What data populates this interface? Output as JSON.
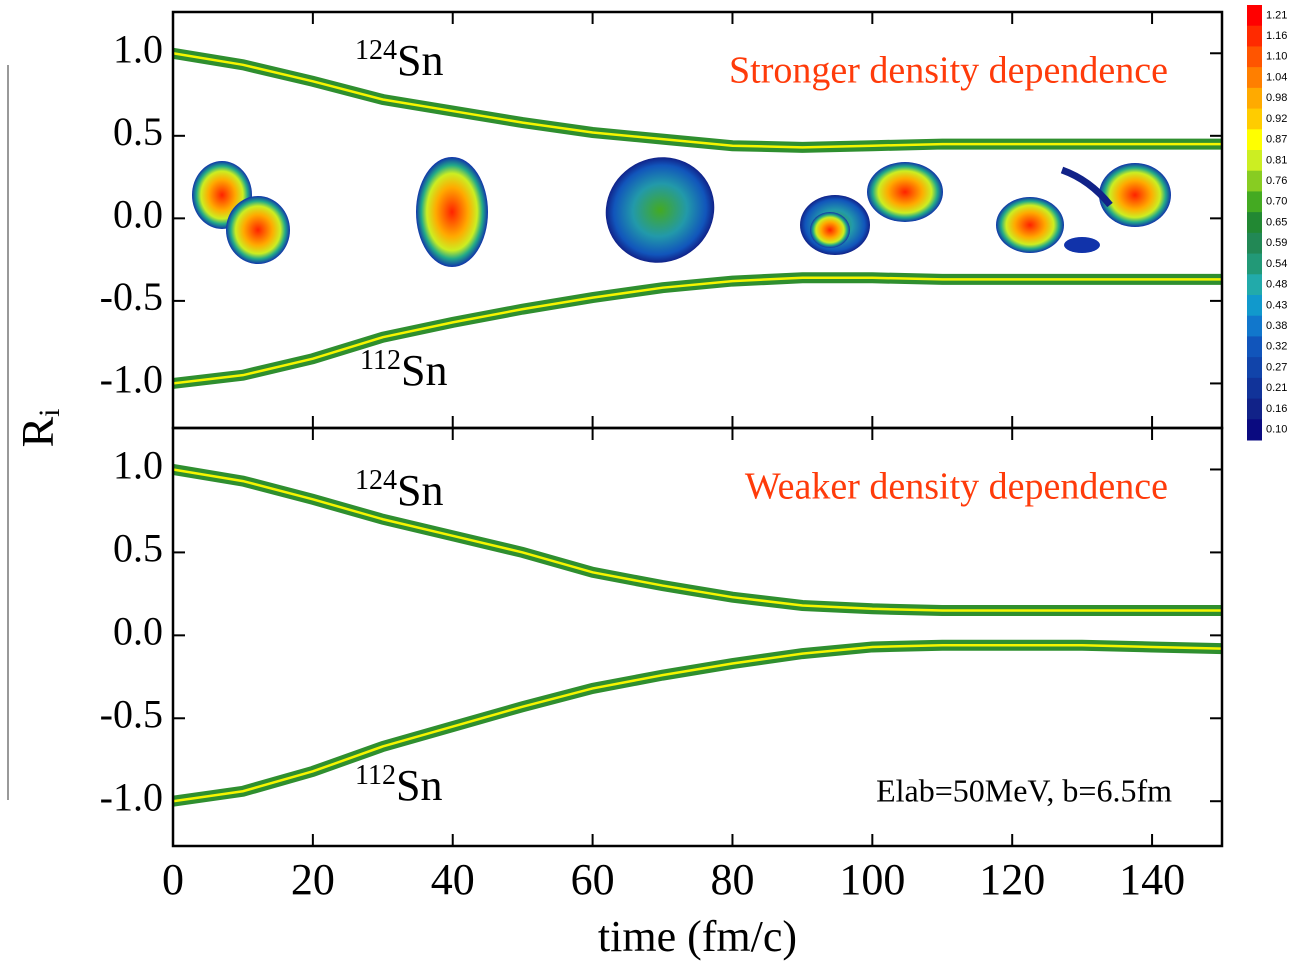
{
  "chart_data": [
    {
      "type": "line",
      "annotation": "Stronger density dependence",
      "annotation_color": "#ff3b0a",
      "x": [
        0,
        10,
        20,
        30,
        40,
        50,
        60,
        70,
        80,
        90,
        100,
        110,
        120,
        130,
        140,
        150
      ],
      "series": [
        {
          "name": {
            "sup": "124",
            "text": "Sn"
          },
          "color": "#f5f500",
          "band_color": "#2f8f2f",
          "values": [
            1.0,
            0.93,
            0.83,
            0.72,
            0.65,
            0.58,
            0.52,
            0.48,
            0.44,
            0.43,
            0.44,
            0.45,
            0.45,
            0.45,
            0.45,
            0.45
          ]
        },
        {
          "name": {
            "sup": "112",
            "text": "Sn"
          },
          "color": "#f5f500",
          "band_color": "#2f8f2f",
          "values": [
            -1.0,
            -0.95,
            -0.85,
            -0.72,
            -0.63,
            -0.55,
            -0.48,
            -0.42,
            -0.38,
            -0.36,
            -0.36,
            -0.37,
            -0.37,
            -0.37,
            -0.37,
            -0.37
          ]
        }
      ],
      "xlim": [
        0,
        150
      ],
      "ylim": [
        -1.27,
        1.25
      ],
      "yticks": [
        {
          "value": -1.0,
          "label": "-1.0"
        },
        -0.5,
        {
          "value": 0.0,
          "label": "0.0"
        },
        0.5,
        {
          "value": 1.0,
          "label": "1.0"
        }
      ],
      "colorbar": {
        "ticks": [
          1.21,
          1.16,
          {
            "value": 1.1,
            "label": "1.10"
          },
          1.04,
          0.98,
          0.92,
          0.87,
          0.81,
          0.76,
          {
            "value": 0.7,
            "label": "0.70"
          },
          0.65,
          0.59,
          0.54,
          0.48,
          0.43,
          0.38,
          0.32,
          0.27,
          0.21,
          0.16,
          {
            "value": 0.1,
            "label": "0.10"
          }
        ],
        "colors": [
          "#ff0000",
          "#ff2a00",
          "#ff5500",
          "#ff7f00",
          "#ffaa00",
          "#ffcc00",
          "#ffff00",
          "#ccee22",
          "#88cc22",
          "#44aa22",
          "#228833",
          "#228855",
          "#229977",
          "#22aaaa",
          "#1199cc",
          "#1177cc",
          "#1155bb",
          "#1144aa",
          "#113399",
          "#112288",
          "#0a0a80"
        ]
      }
    },
    {
      "type": "line",
      "annotation": "Weaker  density dependence",
      "annotation_color": "#ff3b0a",
      "note": "Elab=50MeV, b=6.5fm",
      "xlabel": "time (fm/c)",
      "ylabel": {
        "text": "R",
        "sub": "i"
      },
      "x": [
        0,
        10,
        20,
        30,
        40,
        50,
        60,
        70,
        80,
        90,
        100,
        110,
        120,
        130,
        140,
        150
      ],
      "series": [
        {
          "name": {
            "sup": "124",
            "text": "Sn"
          },
          "color": "#f5f500",
          "band_color": "#2f8f2f",
          "values": [
            1.0,
            0.93,
            0.82,
            0.7,
            0.6,
            0.5,
            0.38,
            0.3,
            0.23,
            0.18,
            0.16,
            0.15,
            0.15,
            0.15,
            0.15,
            0.15
          ]
        },
        {
          "name": {
            "sup": "112",
            "text": "Sn"
          },
          "color": "#f5f500",
          "band_color": "#2f8f2f",
          "values": [
            -1.0,
            -0.94,
            -0.82,
            -0.67,
            -0.55,
            -0.43,
            -0.32,
            -0.24,
            -0.17,
            -0.11,
            -0.07,
            -0.06,
            -0.06,
            -0.06,
            -0.07,
            -0.08
          ]
        }
      ],
      "xlim": [
        0,
        150
      ],
      "xticks": [
        0,
        20,
        40,
        60,
        80,
        100,
        120,
        140
      ],
      "ylim": [
        -1.27,
        1.25
      ],
      "yticks": [
        {
          "value": -1.0,
          "label": "-1.0"
        },
        -0.5,
        {
          "value": 0.0,
          "label": "0.0"
        },
        0.5,
        {
          "value": 1.0,
          "label": "1.0"
        }
      ]
    }
  ]
}
